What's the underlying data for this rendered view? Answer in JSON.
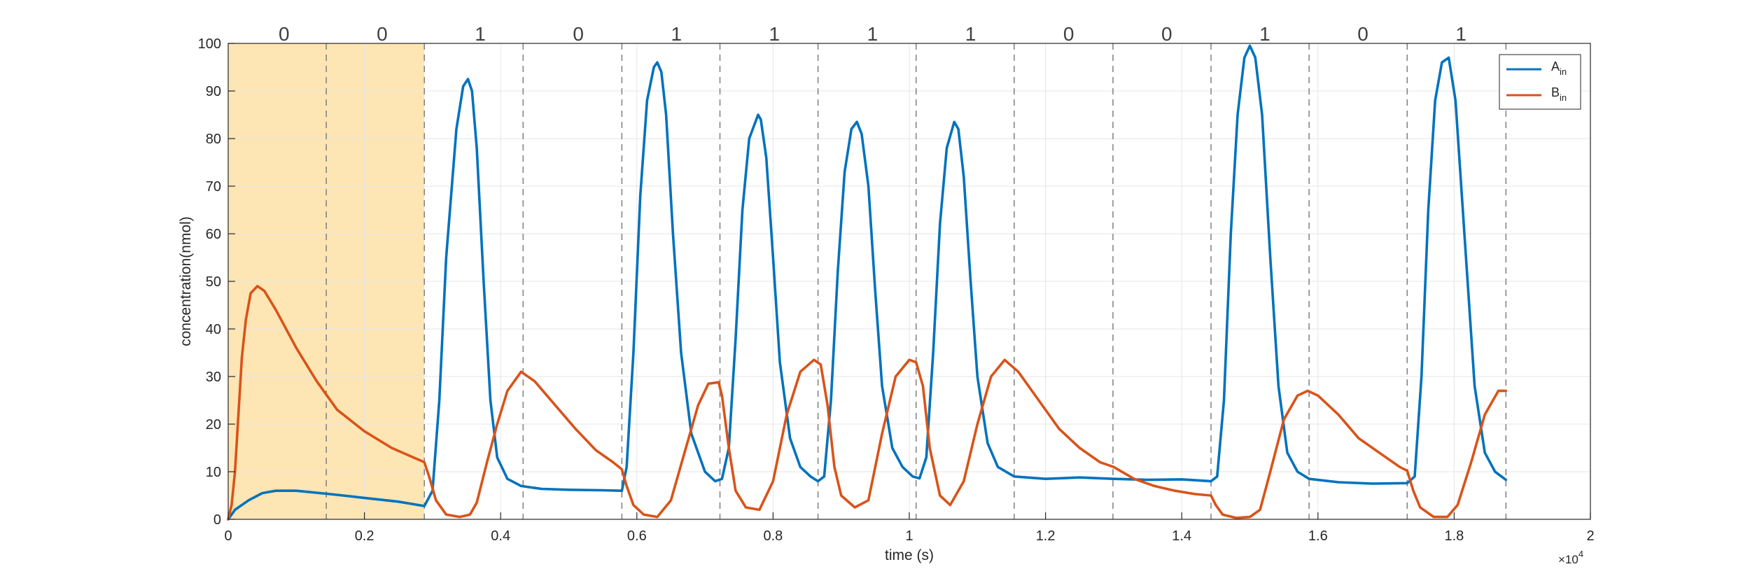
{
  "chart_data": {
    "type": "line",
    "xlabel": "time (s)",
    "ylabel": "concentration(nmol)",
    "xlim": [
      0,
      20000
    ],
    "ylim": [
      0,
      100
    ],
    "x_exponent_label": "×10",
    "x_exponent_power": "4",
    "xticks": [
      0,
      2000,
      4000,
      6000,
      8000,
      10000,
      12000,
      14000,
      16000,
      18000,
      20000
    ],
    "xtick_labels": [
      "0",
      "0.2",
      "0.4",
      "0.6",
      "0.8",
      "1",
      "1.2",
      "1.4",
      "1.6",
      "1.8",
      "2"
    ],
    "yticks": [
      0,
      10,
      20,
      30,
      40,
      50,
      60,
      70,
      80,
      90,
      100
    ],
    "ytick_labels": [
      "0",
      "10",
      "20",
      "30",
      "40",
      "50",
      "60",
      "70",
      "80",
      "90",
      "100"
    ],
    "grid": true,
    "legend_position": "top-right",
    "shaded_region": {
      "x": [
        0,
        2880
      ],
      "color": "#fde5b4"
    },
    "interval_boundaries": [
      1440,
      2880,
      4330,
      5780,
      7220,
      8660,
      10100,
      11540,
      12990,
      14430,
      15870,
      17310,
      18760
    ],
    "bits": [
      {
        "x": 820,
        "label": "0"
      },
      {
        "x": 2260,
        "label": "0"
      },
      {
        "x": 3700,
        "label": "1"
      },
      {
        "x": 5140,
        "label": "0"
      },
      {
        "x": 6580,
        "label": "1"
      },
      {
        "x": 8020,
        "label": "1"
      },
      {
        "x": 9460,
        "label": "1"
      },
      {
        "x": 10900,
        "label": "1"
      },
      {
        "x": 12340,
        "label": "0"
      },
      {
        "x": 13780,
        "label": "0"
      },
      {
        "x": 15220,
        "label": "1"
      },
      {
        "x": 16660,
        "label": "0"
      },
      {
        "x": 18100,
        "label": "1"
      }
    ],
    "series": [
      {
        "name": "A",
        "name_subscript": "in",
        "color": "#0072bd",
        "points": [
          [
            0,
            0
          ],
          [
            100,
            2
          ],
          [
            300,
            4
          ],
          [
            500,
            5.5
          ],
          [
            700,
            6
          ],
          [
            1000,
            6
          ],
          [
            1500,
            5.3
          ],
          [
            2000,
            4.5
          ],
          [
            2500,
            3.7
          ],
          [
            2880,
            2.8
          ],
          [
            3000,
            6
          ],
          [
            3100,
            25
          ],
          [
            3200,
            55
          ],
          [
            3350,
            82
          ],
          [
            3450,
            91
          ],
          [
            3520,
            92.5
          ],
          [
            3580,
            90
          ],
          [
            3650,
            78
          ],
          [
            3750,
            50
          ],
          [
            3850,
            25
          ],
          [
            3950,
            13
          ],
          [
            4100,
            8.5
          ],
          [
            4300,
            7
          ],
          [
            4600,
            6.4
          ],
          [
            5000,
            6.2
          ],
          [
            5500,
            6.1
          ],
          [
            5780,
            6
          ],
          [
            5850,
            11
          ],
          [
            5950,
            35
          ],
          [
            6050,
            68
          ],
          [
            6150,
            88
          ],
          [
            6250,
            95
          ],
          [
            6300,
            96
          ],
          [
            6360,
            94
          ],
          [
            6430,
            85
          ],
          [
            6530,
            60
          ],
          [
            6650,
            35
          ],
          [
            6800,
            18
          ],
          [
            7000,
            10
          ],
          [
            7150,
            8
          ],
          [
            7250,
            8.5
          ],
          [
            7350,
            15
          ],
          [
            7450,
            38
          ],
          [
            7550,
            65
          ],
          [
            7650,
            80
          ],
          [
            7780,
            85
          ],
          [
            7820,
            84
          ],
          [
            7900,
            76
          ],
          [
            8000,
            55
          ],
          [
            8100,
            33
          ],
          [
            8250,
            17
          ],
          [
            8400,
            11
          ],
          [
            8550,
            9
          ],
          [
            8660,
            8
          ],
          [
            8750,
            9
          ],
          [
            8850,
            25
          ],
          [
            8950,
            52
          ],
          [
            9050,
            73
          ],
          [
            9150,
            82
          ],
          [
            9230,
            83.5
          ],
          [
            9300,
            81
          ],
          [
            9400,
            70
          ],
          [
            9500,
            48
          ],
          [
            9600,
            28
          ],
          [
            9750,
            15
          ],
          [
            9900,
            11
          ],
          [
            10050,
            9
          ],
          [
            10150,
            8.6
          ],
          [
            10250,
            13
          ],
          [
            10350,
            35
          ],
          [
            10450,
            62
          ],
          [
            10550,
            78
          ],
          [
            10660,
            83.5
          ],
          [
            10720,
            82
          ],
          [
            10800,
            72
          ],
          [
            10900,
            50
          ],
          [
            11000,
            30
          ],
          [
            11150,
            16
          ],
          [
            11300,
            11
          ],
          [
            11540,
            9
          ],
          [
            12000,
            8.5
          ],
          [
            12500,
            8.8
          ],
          [
            13000,
            8.5
          ],
          [
            13500,
            8.3
          ],
          [
            14000,
            8.4
          ],
          [
            14430,
            8
          ],
          [
            14520,
            9
          ],
          [
            14620,
            25
          ],
          [
            14720,
            60
          ],
          [
            14820,
            85
          ],
          [
            14920,
            97
          ],
          [
            15000,
            99.5
          ],
          [
            15080,
            97
          ],
          [
            15180,
            85
          ],
          [
            15300,
            55
          ],
          [
            15420,
            28
          ],
          [
            15550,
            14
          ],
          [
            15700,
            10
          ],
          [
            15870,
            8.5
          ],
          [
            16300,
            7.8
          ],
          [
            16800,
            7.5
          ],
          [
            17310,
            7.6
          ],
          [
            17420,
            9
          ],
          [
            17520,
            30
          ],
          [
            17620,
            65
          ],
          [
            17720,
            88
          ],
          [
            17820,
            96
          ],
          [
            17920,
            97
          ],
          [
            18020,
            88
          ],
          [
            18150,
            60
          ],
          [
            18300,
            28
          ],
          [
            18450,
            14
          ],
          [
            18600,
            10
          ],
          [
            18760,
            8.3
          ]
        ]
      },
      {
        "name": "B",
        "name_subscript": "in",
        "color": "#d95319",
        "points": [
          [
            0,
            0
          ],
          [
            50,
            3
          ],
          [
            100,
            10
          ],
          [
            150,
            22
          ],
          [
            200,
            34
          ],
          [
            260,
            42
          ],
          [
            330,
            47.5
          ],
          [
            430,
            49
          ],
          [
            530,
            48
          ],
          [
            700,
            44
          ],
          [
            1000,
            36
          ],
          [
            1300,
            29
          ],
          [
            1600,
            23
          ],
          [
            2000,
            18.5
          ],
          [
            2400,
            15
          ],
          [
            2800,
            12.5
          ],
          [
            2880,
            12
          ],
          [
            2950,
            9
          ],
          [
            3050,
            4
          ],
          [
            3200,
            1
          ],
          [
            3400,
            0.5
          ],
          [
            3550,
            1
          ],
          [
            3650,
            3.5
          ],
          [
            3800,
            12
          ],
          [
            3950,
            20
          ],
          [
            4100,
            27
          ],
          [
            4300,
            31
          ],
          [
            4500,
            29
          ],
          [
            4800,
            24
          ],
          [
            5100,
            19
          ],
          [
            5400,
            14.5
          ],
          [
            5650,
            12
          ],
          [
            5780,
            10.5
          ],
          [
            5850,
            7
          ],
          [
            5950,
            3
          ],
          [
            6100,
            1
          ],
          [
            6300,
            0.5
          ],
          [
            6500,
            4
          ],
          [
            6700,
            14
          ],
          [
            6900,
            24
          ],
          [
            7050,
            28.5
          ],
          [
            7200,
            28.8
          ],
          [
            7250,
            26
          ],
          [
            7350,
            15
          ],
          [
            7450,
            6
          ],
          [
            7600,
            2.5
          ],
          [
            7800,
            2
          ],
          [
            8000,
            8
          ],
          [
            8200,
            22
          ],
          [
            8400,
            31
          ],
          [
            8600,
            33.5
          ],
          [
            8700,
            32.5
          ],
          [
            8800,
            24
          ],
          [
            8900,
            11
          ],
          [
            9000,
            5
          ],
          [
            9200,
            2.5
          ],
          [
            9400,
            4
          ],
          [
            9600,
            18
          ],
          [
            9800,
            30
          ],
          [
            10000,
            33.5
          ],
          [
            10100,
            33
          ],
          [
            10200,
            28
          ],
          [
            10300,
            15
          ],
          [
            10450,
            5
          ],
          [
            10600,
            3
          ],
          [
            10800,
            8
          ],
          [
            11000,
            20
          ],
          [
            11200,
            30
          ],
          [
            11400,
            33.5
          ],
          [
            11600,
            31
          ],
          [
            11900,
            25
          ],
          [
            12200,
            19
          ],
          [
            12500,
            15
          ],
          [
            12800,
            12
          ],
          [
            13000,
            11
          ],
          [
            13300,
            8.5
          ],
          [
            13600,
            7
          ],
          [
            13900,
            6
          ],
          [
            14200,
            5.3
          ],
          [
            14430,
            5
          ],
          [
            14500,
            3
          ],
          [
            14600,
            1
          ],
          [
            14800,
            0.3
          ],
          [
            15000,
            0.5
          ],
          [
            15150,
            2
          ],
          [
            15300,
            10
          ],
          [
            15500,
            21
          ],
          [
            15700,
            26
          ],
          [
            15850,
            27
          ],
          [
            16000,
            26
          ],
          [
            16300,
            22
          ],
          [
            16600,
            17
          ],
          [
            16900,
            14
          ],
          [
            17200,
            11
          ],
          [
            17310,
            10.2
          ],
          [
            17400,
            6
          ],
          [
            17500,
            2.5
          ],
          [
            17700,
            0.5
          ],
          [
            17900,
            0.5
          ],
          [
            18050,
            3
          ],
          [
            18250,
            12
          ],
          [
            18450,
            22
          ],
          [
            18650,
            27
          ],
          [
            18760,
            27
          ]
        ]
      }
    ]
  }
}
